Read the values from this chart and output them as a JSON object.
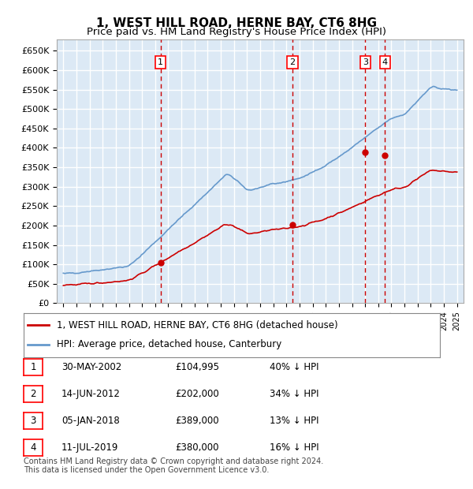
{
  "title": "1, WEST HILL ROAD, HERNE BAY, CT6 8HG",
  "subtitle": "Price paid vs. HM Land Registry's House Price Index (HPI)",
  "ylabel": "",
  "xlabel": "",
  "ylim": [
    0,
    680000
  ],
  "yticks": [
    0,
    50000,
    100000,
    150000,
    200000,
    250000,
    300000,
    350000,
    400000,
    450000,
    500000,
    550000,
    600000,
    650000
  ],
  "background_color": "#dce9f5",
  "plot_bg_color": "#dce9f5",
  "grid_color": "#ffffff",
  "red_line_color": "#cc0000",
  "blue_line_color": "#6699cc",
  "sale_points": [
    {
      "date_num": 2002.41,
      "price": 104995,
      "label": "1"
    },
    {
      "date_num": 2012.45,
      "price": 202000,
      "label": "2"
    },
    {
      "date_num": 2018.02,
      "price": 389000,
      "label": "3"
    },
    {
      "date_num": 2019.52,
      "price": 380000,
      "label": "4"
    }
  ],
  "vline_dates": [
    2002.41,
    2012.45,
    2018.02,
    2019.52
  ],
  "legend_entries": [
    {
      "label": "1, WEST HILL ROAD, HERNE BAY, CT6 8HG (detached house)",
      "color": "#cc0000"
    },
    {
      "label": "HPI: Average price, detached house, Canterbury",
      "color": "#6699cc"
    }
  ],
  "table_rows": [
    {
      "num": "1",
      "date": "30-MAY-2002",
      "price": "£104,995",
      "note": "40% ↓ HPI"
    },
    {
      "num": "2",
      "date": "14-JUN-2012",
      "price": "£202,000",
      "note": "34% ↓ HPI"
    },
    {
      "num": "3",
      "date": "05-JAN-2018",
      "price": "£389,000",
      "note": "13% ↓ HPI"
    },
    {
      "num": "4",
      "date": "11-JUL-2019",
      "price": "£380,000",
      "note": "16% ↓ HPI"
    }
  ],
  "footer": "Contains HM Land Registry data © Crown copyright and database right 2024.\nThis data is licensed under the Open Government Licence v3.0.",
  "title_fontsize": 11,
  "subtitle_fontsize": 9.5
}
